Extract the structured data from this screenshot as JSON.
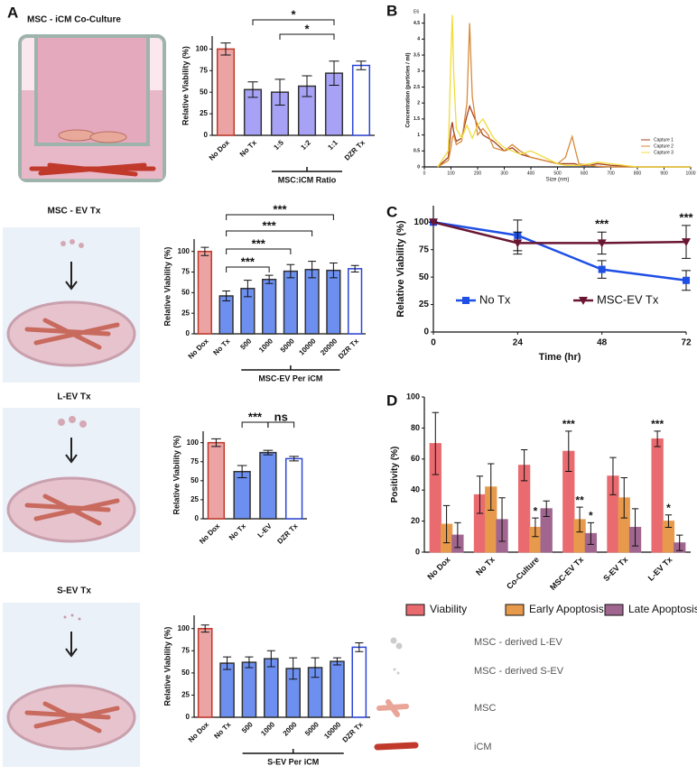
{
  "panel_labels": [
    "A",
    "B",
    "C",
    "D"
  ],
  "illustrations": [
    "MSC - iCM Co-Culture",
    "MSC - EV Tx",
    "L-EV Tx",
    "S-EV Tx"
  ],
  "key": [
    "MSC - derived L-EV",
    "MSC - derived S-EV",
    "MSC",
    "iCM"
  ],
  "chart_data": [
    {
      "type": "bar",
      "ylabel": "Relative Viability (%)",
      "categories": [
        "No Dox",
        "No Tx",
        "1:5",
        "1:2",
        "1:1",
        "DZR Tx"
      ],
      "values": [
        100,
        53,
        50,
        57,
        72,
        81
      ],
      "errors": [
        7,
        9,
        15,
        12,
        14,
        5
      ],
      "colors": [
        "#eba3a3",
        "#a7a2f5",
        "#a7a2f5",
        "#a7a2f5",
        "#a7a2f5",
        "#ffffff"
      ],
      "edge_colors": [
        "#c0392b",
        "#333333",
        "#333333",
        "#333333",
        "#333333",
        "#2c46d6"
      ],
      "group_label": "MSC:iCM Ratio",
      "annotations": [
        "*",
        "*"
      ],
      "ylim": [
        0,
        115
      ],
      "yticks": [
        0,
        25,
        50,
        75,
        100
      ]
    },
    {
      "type": "line",
      "y_multiplier": "E6",
      "ylabel": "Concentration (particles / ml)",
      "xlabel": "Size (nm)",
      "x": [
        50,
        90,
        100,
        105,
        110,
        120,
        140,
        160,
        170,
        180,
        200,
        220,
        240,
        260,
        300,
        330,
        360,
        400,
        450,
        500,
        530,
        545,
        555,
        565,
        580,
        620,
        650,
        700,
        800,
        1000
      ],
      "series": [
        {
          "name": "Capture 1",
          "color": "#a3401e",
          "values": [
            0,
            0.3,
            1.2,
            1.4,
            1.1,
            0.8,
            0.9,
            1.6,
            1.9,
            1.7,
            1.3,
            1.0,
            0.9,
            0.8,
            0.5,
            0.6,
            0.4,
            0.3,
            0.2,
            0.1,
            0.1,
            0.1,
            0.1,
            0.1,
            0.05,
            0.05,
            0.1,
            0.05,
            0,
            0
          ]
        },
        {
          "name": "Capture 2",
          "color": "#d98a3a",
          "values": [
            0,
            0.2,
            0.6,
            0.9,
            1.0,
            0.7,
            0.8,
            2.0,
            4.5,
            2.2,
            1.0,
            1.2,
            1.0,
            0.6,
            0.5,
            0.7,
            0.5,
            0.3,
            0.2,
            0.1,
            0.3,
            0.7,
            0.95,
            0.6,
            0.1,
            0.05,
            0.02,
            0,
            0,
            0
          ]
        },
        {
          "name": "Capture 3",
          "color": "#f0dc3a",
          "values": [
            0,
            0.5,
            3.5,
            4.75,
            3.0,
            1.2,
            0.9,
            1.3,
            1.1,
            0.9,
            1.3,
            1.5,
            1.2,
            0.9,
            0.6,
            0.5,
            0.4,
            0.5,
            0.3,
            0.1,
            0.05,
            0.05,
            0.05,
            0.05,
            0.05,
            0.1,
            0.15,
            0.1,
            0,
            0
          ]
        }
      ],
      "xlim": [
        0,
        1000
      ],
      "xticks": [
        0,
        100,
        200,
        300,
        400,
        500,
        600,
        700,
        800,
        900,
        1000
      ],
      "ylim": [
        0,
        4.8
      ],
      "yticks": [
        0,
        0.5,
        1,
        1.5,
        2,
        2.5,
        3,
        3.5,
        4,
        4.5
      ],
      "legend": "lower right"
    },
    {
      "type": "bar",
      "ylabel": "Relative Viability (%)",
      "categories": [
        "No Dox",
        "No Tx",
        "500",
        "1000",
        "5000",
        "10000",
        "20000",
        "DZR Tx"
      ],
      "values": [
        100,
        46,
        55,
        66,
        76,
        78,
        77,
        79
      ],
      "errors": [
        5,
        6,
        10,
        5,
        8,
        10,
        9,
        4
      ],
      "colors": [
        "#eba3a3",
        "#6d90f0",
        "#6d90f0",
        "#6d90f0",
        "#6d90f0",
        "#6d90f0",
        "#6d90f0",
        "#ffffff"
      ],
      "edge_colors": [
        "#c0392b",
        "#333333",
        "#333333",
        "#333333",
        "#333333",
        "#333333",
        "#333333",
        "#2c46d6"
      ],
      "group_label": "MSC-EV Per iCM",
      "annotations": [
        "***",
        "***",
        "***",
        "***"
      ],
      "ylim": [
        0,
        115
      ],
      "yticks": [
        0,
        25,
        50,
        75,
        100
      ]
    },
    {
      "type": "line",
      "ylabel": "Relative Viability (%)",
      "xlabel": "Time (hr)",
      "x": [
        0,
        24,
        48,
        72
      ],
      "series": [
        {
          "name": "No Tx",
          "color": "#1f4fe5",
          "marker": "square",
          "values": [
            100,
            88,
            57,
            47
          ],
          "errors": [
            0,
            14,
            8,
            9
          ]
        },
        {
          "name": "MSC-EV Tx",
          "color": "#6a1632",
          "marker": "triangle-down",
          "values": [
            100,
            81,
            81,
            82
          ],
          "errors": [
            0,
            10,
            10,
            15
          ]
        }
      ],
      "annotations": [
        "***",
        "***"
      ],
      "xlim": [
        0,
        72
      ],
      "xticks": [
        0,
        24,
        48,
        72
      ],
      "ylim": [
        0,
        115
      ],
      "yticks": [
        0,
        25,
        50,
        75,
        100
      ],
      "legend": "lower center"
    },
    {
      "type": "bar",
      "ylabel": "Relative Viability (%)",
      "categories": [
        "No Dox",
        "No Tx",
        "L-EV",
        "DZR Tx"
      ],
      "values": [
        100,
        62,
        87,
        79
      ],
      "errors": [
        5,
        8,
        3,
        3
      ],
      "colors": [
        "#eba3a3",
        "#6d90f0",
        "#6d90f0",
        "#ffffff"
      ],
      "edge_colors": [
        "#c0392b",
        "#333333",
        "#333333",
        "#2c46d6"
      ],
      "annotations": [
        "***",
        "ns"
      ],
      "ylim": [
        0,
        115
      ],
      "yticks": [
        0,
        25,
        50,
        75,
        100
      ]
    },
    {
      "type": "bar",
      "ylabel": "Positivity (%)",
      "categories": [
        "No Dox",
        "No Tx",
        "Co-Culture",
        "MSC-EV Tx",
        "S-EV Tx",
        "L-EV Tx"
      ],
      "series": [
        {
          "name": "Viability",
          "color": "#e96b70",
          "values": [
            70,
            37,
            56,
            65,
            49,
            73
          ],
          "errors": [
            20,
            12,
            10,
            13,
            12,
            5
          ]
        },
        {
          "name": "Early Apoptosis",
          "color": "#e89a4c",
          "values": [
            18,
            42,
            16,
            21,
            35,
            20
          ],
          "errors": [
            12,
            15,
            6,
            8,
            13,
            4
          ]
        },
        {
          "name": "Late Apoptosis",
          "color": "#a0668f",
          "values": [
            11,
            21,
            28,
            12,
            16,
            6
          ],
          "errors": [
            8,
            14,
            5,
            7,
            12,
            5
          ]
        }
      ],
      "annotations": [
        "*",
        "***",
        "**",
        "*",
        "***",
        "*"
      ],
      "ylim": [
        0,
        100
      ],
      "yticks": [
        0,
        20,
        40,
        60,
        80,
        100
      ],
      "legend": "below"
    },
    {
      "type": "bar",
      "ylabel": "Relative Viability (%)",
      "categories": [
        "No Dox",
        "No Tx",
        "500",
        "1000",
        "2000",
        "5000",
        "10000",
        "DZR Tx"
      ],
      "values": [
        100,
        61,
        62,
        66,
        55,
        56,
        63,
        79
      ],
      "errors": [
        4,
        7,
        6,
        9,
        12,
        11,
        4,
        5
      ],
      "colors": [
        "#eba3a3",
        "#6d90f0",
        "#6d90f0",
        "#6d90f0",
        "#6d90f0",
        "#6d90f0",
        "#6d90f0",
        "#ffffff"
      ],
      "edge_colors": [
        "#c0392b",
        "#333333",
        "#333333",
        "#333333",
        "#333333",
        "#333333",
        "#333333",
        "#2c46d6"
      ],
      "group_label": "S-EV Per iCM",
      "ylim": [
        0,
        115
      ],
      "yticks": [
        0,
        25,
        50,
        75,
        100
      ]
    }
  ]
}
